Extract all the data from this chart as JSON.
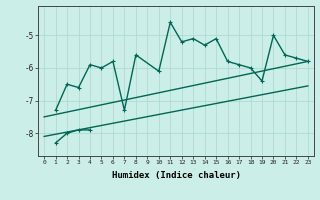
{
  "xlabel": "Humidex (Indice chaleur)",
  "bg_color": "#cceee8",
  "line_color": "#006655",
  "grid_color": "#aad8cc",
  "xlim": [
    -0.5,
    23.5
  ],
  "ylim": [
    -8.7,
    -4.1
  ],
  "yticks": [
    -8,
    -7,
    -6,
    -5
  ],
  "xticks": [
    0,
    1,
    2,
    3,
    4,
    5,
    6,
    7,
    8,
    9,
    10,
    11,
    12,
    13,
    14,
    15,
    16,
    17,
    18,
    19,
    20,
    21,
    22,
    23
  ],
  "series": {
    "main": [
      null,
      -7.3,
      -6.5,
      -6.6,
      -5.9,
      -6.0,
      -5.8,
      -7.3,
      -5.6,
      null,
      -6.1,
      -4.6,
      -5.2,
      -5.1,
      -5.3,
      -5.1,
      -5.8,
      -5.9,
      -6.0,
      -6.4,
      -5.0,
      -5.6,
      -5.7,
      -5.8
    ],
    "short": [
      null,
      -8.3,
      -8.0,
      -7.9,
      -7.9,
      null,
      null,
      null,
      null,
      null,
      null,
      null,
      null,
      null,
      null,
      null,
      null,
      null,
      null,
      null,
      null,
      null,
      null,
      null
    ],
    "trend_upper": [
      -7.5,
      null,
      null,
      null,
      null,
      null,
      null,
      null,
      null,
      null,
      null,
      null,
      null,
      null,
      null,
      null,
      null,
      null,
      null,
      null,
      null,
      null,
      null,
      -5.8
    ],
    "trend_lower": [
      -8.1,
      null,
      null,
      null,
      null,
      null,
      null,
      null,
      null,
      null,
      null,
      null,
      null,
      null,
      null,
      null,
      null,
      null,
      null,
      null,
      null,
      null,
      null,
      -6.55
    ]
  }
}
